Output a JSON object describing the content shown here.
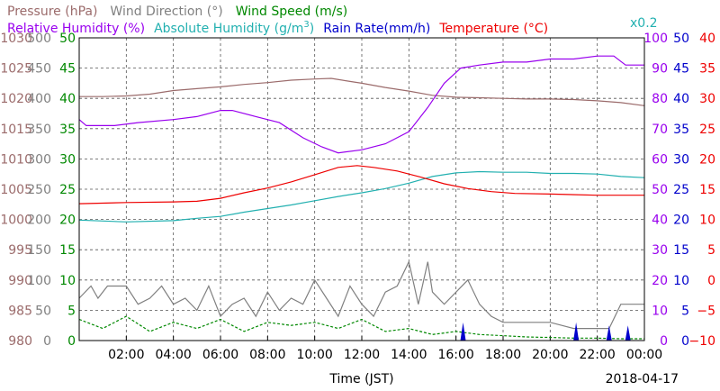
{
  "chart_data": {
    "type": "line",
    "xlabel": "Time (JST)",
    "date_label": "2018-04-17",
    "x_ticks": [
      "02:00",
      "04:00",
      "06:00",
      "08:00",
      "10:00",
      "12:00",
      "14:00",
      "16:00",
      "18:00",
      "20:00",
      "22:00",
      "00:00"
    ],
    "xlim_hours": [
      0,
      24
    ],
    "legend_row1": [
      {
        "text": "Pressure (hPa)",
        "color": "#9b6b6b"
      },
      {
        "text": "Wind Direction (°)",
        "color": "#808080"
      },
      {
        "text": "Wind Speed (m/s)",
        "color": "#008800"
      }
    ],
    "legend_row2": [
      {
        "text": "Relative Humidity (%)",
        "color": "#9900ee"
      },
      {
        "text": "Absolute Humidity (g/m",
        "sup": "3",
        "close": ")",
        "color": "#22b0b0"
      },
      {
        "text": "Rain Rate(mm/h)",
        "color": "#0000cc"
      },
      {
        "text": "Temperature (°C)",
        "color": "#ee0000"
      }
    ],
    "rain_scale_note": "x0.2",
    "axes": {
      "pressure": {
        "range": [
          980,
          1030
        ],
        "ticks": [
          "1030",
          "1025",
          "1020",
          "1015",
          "1010",
          "1005",
          "1000",
          "995",
          "990",
          "985",
          "980"
        ],
        "color": "#9b6b6b"
      },
      "wind_direction": {
        "range": [
          0,
          500
        ],
        "ticks": [
          "500",
          "450",
          "400",
          "350",
          "300",
          "250",
          "200",
          "150",
          "100",
          "50",
          "0"
        ],
        "color": "#808080"
      },
      "wind_speed": {
        "range": [
          0,
          50
        ],
        "ticks": [
          "50",
          "45",
          "40",
          "35",
          "30",
          "25",
          "20",
          "15",
          "10",
          "5",
          "0"
        ],
        "color": "#008800"
      },
      "relative_humidity": {
        "range": [
          0,
          100
        ],
        "ticks": [
          "100",
          "90",
          "80",
          "70",
          "60",
          "50",
          "40",
          "30",
          "20",
          "10",
          "0"
        ],
        "color": "#9900ee"
      },
      "rain_rate": {
        "range": [
          0,
          50
        ],
        "ticks": [
          "50",
          "45",
          "40",
          "35",
          "30",
          "25",
          "20",
          "15",
          "10",
          "5",
          "0"
        ],
        "color": "#0000cc"
      },
      "temperature": {
        "range": [
          -10,
          40
        ],
        "ticks": [
          "40",
          "35",
          "30",
          "25",
          "20",
          "15",
          "10",
          "5",
          "0",
          "−5",
          "−10"
        ],
        "color": "#ee0000"
      }
    },
    "series": [
      {
        "name": "Pressure (hPa)",
        "axis": "pressure",
        "color": "#9b6b6b",
        "points": [
          [
            0,
            1020.3
          ],
          [
            1,
            1020.3
          ],
          [
            2,
            1020.4
          ],
          [
            3,
            1020.7
          ],
          [
            4,
            1021.3
          ],
          [
            5,
            1021.6
          ],
          [
            6,
            1021.9
          ],
          [
            7,
            1022.3
          ],
          [
            8,
            1022.6
          ],
          [
            9,
            1023.0
          ],
          [
            10,
            1023.2
          ],
          [
            10.7,
            1023.3
          ],
          [
            11.5,
            1022.8
          ],
          [
            12,
            1022.5
          ],
          [
            13,
            1021.8
          ],
          [
            14,
            1021.2
          ],
          [
            15,
            1020.5
          ],
          [
            16,
            1020.2
          ],
          [
            17,
            1020.1
          ],
          [
            18,
            1020.0
          ],
          [
            19,
            1019.9
          ],
          [
            20,
            1019.9
          ],
          [
            21,
            1019.8
          ],
          [
            22,
            1019.6
          ],
          [
            23,
            1019.3
          ],
          [
            24,
            1018.8
          ]
        ]
      },
      {
        "name": "Relative Humidity (%)",
        "axis": "relative_humidity",
        "color": "#9900ee",
        "points": [
          [
            0,
            73
          ],
          [
            0.3,
            71
          ],
          [
            1.5,
            71
          ],
          [
            2.5,
            72
          ],
          [
            4,
            73
          ],
          [
            5,
            74
          ],
          [
            6,
            76
          ],
          [
            6.5,
            76
          ],
          [
            7.5,
            74
          ],
          [
            8.5,
            72
          ],
          [
            9.5,
            67
          ],
          [
            10.3,
            64
          ],
          [
            11,
            62
          ],
          [
            12,
            63
          ],
          [
            13,
            65
          ],
          [
            14,
            69
          ],
          [
            14.8,
            77
          ],
          [
            15.5,
            85
          ],
          [
            16.2,
            90
          ],
          [
            17,
            91
          ],
          [
            18,
            92
          ],
          [
            19,
            92
          ],
          [
            20,
            93
          ],
          [
            21,
            93
          ],
          [
            22,
            94
          ],
          [
            22.7,
            94
          ],
          [
            23.2,
            91
          ],
          [
            24,
            91
          ]
        ]
      },
      {
        "name": "Temperature (°C)",
        "axis": "temperature",
        "color": "#ee0000",
        "points": [
          [
            0,
            12.6
          ],
          [
            2,
            12.8
          ],
          [
            4,
            12.9
          ],
          [
            5,
            13.0
          ],
          [
            6,
            13.5
          ],
          [
            7,
            14.4
          ],
          [
            8,
            15.2
          ],
          [
            9,
            16.2
          ],
          [
            10,
            17.4
          ],
          [
            11,
            18.6
          ],
          [
            11.8,
            18.9
          ],
          [
            12.5,
            18.6
          ],
          [
            13.5,
            18.0
          ],
          [
            14.5,
            17.0
          ],
          [
            15.5,
            15.9
          ],
          [
            16.5,
            15.1
          ],
          [
            17.5,
            14.6
          ],
          [
            18.5,
            14.3
          ],
          [
            20,
            14.2
          ],
          [
            22,
            14.0
          ],
          [
            24,
            14.0
          ]
        ]
      },
      {
        "name": "Absolute Humidity (g/m3)",
        "axis": "wind_speed",
        "color": "#22b0b0",
        "points": [
          [
            0,
            19.9
          ],
          [
            2,
            19.6
          ],
          [
            4,
            19.8
          ],
          [
            5,
            20.2
          ],
          [
            6,
            20.5
          ],
          [
            7,
            21.2
          ],
          [
            8,
            21.8
          ],
          [
            9,
            22.4
          ],
          [
            10,
            23.1
          ],
          [
            11,
            23.8
          ],
          [
            12,
            24.4
          ],
          [
            13,
            25.1
          ],
          [
            14,
            26.0
          ],
          [
            15,
            27.1
          ],
          [
            16,
            27.7
          ],
          [
            17,
            27.9
          ],
          [
            18,
            27.8
          ],
          [
            19,
            27.8
          ],
          [
            20,
            27.6
          ],
          [
            21,
            27.6
          ],
          [
            22,
            27.5
          ],
          [
            23,
            27.1
          ],
          [
            24,
            26.9
          ]
        ]
      },
      {
        "name": "Wind Direction (°)",
        "axis": "wind_direction",
        "color": "#808080",
        "points": [
          [
            0,
            70
          ],
          [
            0.5,
            90
          ],
          [
            0.8,
            70
          ],
          [
            1.2,
            90
          ],
          [
            2,
            90
          ],
          [
            2.5,
            60
          ],
          [
            3,
            70
          ],
          [
            3.5,
            90
          ],
          [
            4,
            60
          ],
          [
            4.5,
            70
          ],
          [
            5,
            50
          ],
          [
            5.5,
            90
          ],
          [
            6,
            40
          ],
          [
            6.5,
            60
          ],
          [
            7,
            70
          ],
          [
            7.5,
            40
          ],
          [
            8,
            80
          ],
          [
            8.5,
            50
          ],
          [
            9,
            70
          ],
          [
            9.5,
            60
          ],
          [
            10,
            100
          ],
          [
            10.5,
            70
          ],
          [
            11,
            40
          ],
          [
            11.5,
            90
          ],
          [
            12,
            60
          ],
          [
            12.5,
            40
          ],
          [
            13,
            80
          ],
          [
            13.5,
            90
          ],
          [
            14,
            130
          ],
          [
            14.4,
            60
          ],
          [
            14.8,
            130
          ],
          [
            15,
            80
          ],
          [
            15.5,
            60
          ],
          [
            16.5,
            100
          ],
          [
            17,
            60
          ],
          [
            17.5,
            40
          ],
          [
            18,
            30
          ],
          [
            19,
            30
          ],
          [
            20,
            30
          ],
          [
            21,
            20
          ],
          [
            22,
            20
          ],
          [
            22.5,
            20
          ],
          [
            23,
            60
          ],
          [
            24,
            60
          ]
        ]
      },
      {
        "name": "Wind Speed (m/s)",
        "axis": "wind_speed",
        "color": "#008800",
        "points": [
          [
            0,
            3.5
          ],
          [
            1,
            2
          ],
          [
            2,
            4
          ],
          [
            3,
            1.5
          ],
          [
            4,
            3
          ],
          [
            5,
            2
          ],
          [
            6,
            3.5
          ],
          [
            7,
            1.5
          ],
          [
            8,
            3
          ],
          [
            9,
            2.5
          ],
          [
            10,
            3
          ],
          [
            11,
            2
          ],
          [
            12,
            3.5
          ],
          [
            13,
            1.5
          ],
          [
            14,
            2
          ],
          [
            15,
            1
          ],
          [
            16,
            1.5
          ],
          [
            17,
            1
          ],
          [
            18,
            0.8
          ],
          [
            19,
            0.6
          ],
          [
            20,
            0.5
          ],
          [
            21,
            0.4
          ],
          [
            22,
            0.4
          ],
          [
            23,
            0.3
          ],
          [
            24,
            0.3
          ]
        ]
      }
    ],
    "rain_events": [
      {
        "hour": 16.3,
        "value": 3.0
      },
      {
        "hour": 21.1,
        "value": 3.0
      },
      {
        "hour": 22.5,
        "value": 2.5
      },
      {
        "hour": 23.3,
        "value": 2.5
      }
    ]
  }
}
